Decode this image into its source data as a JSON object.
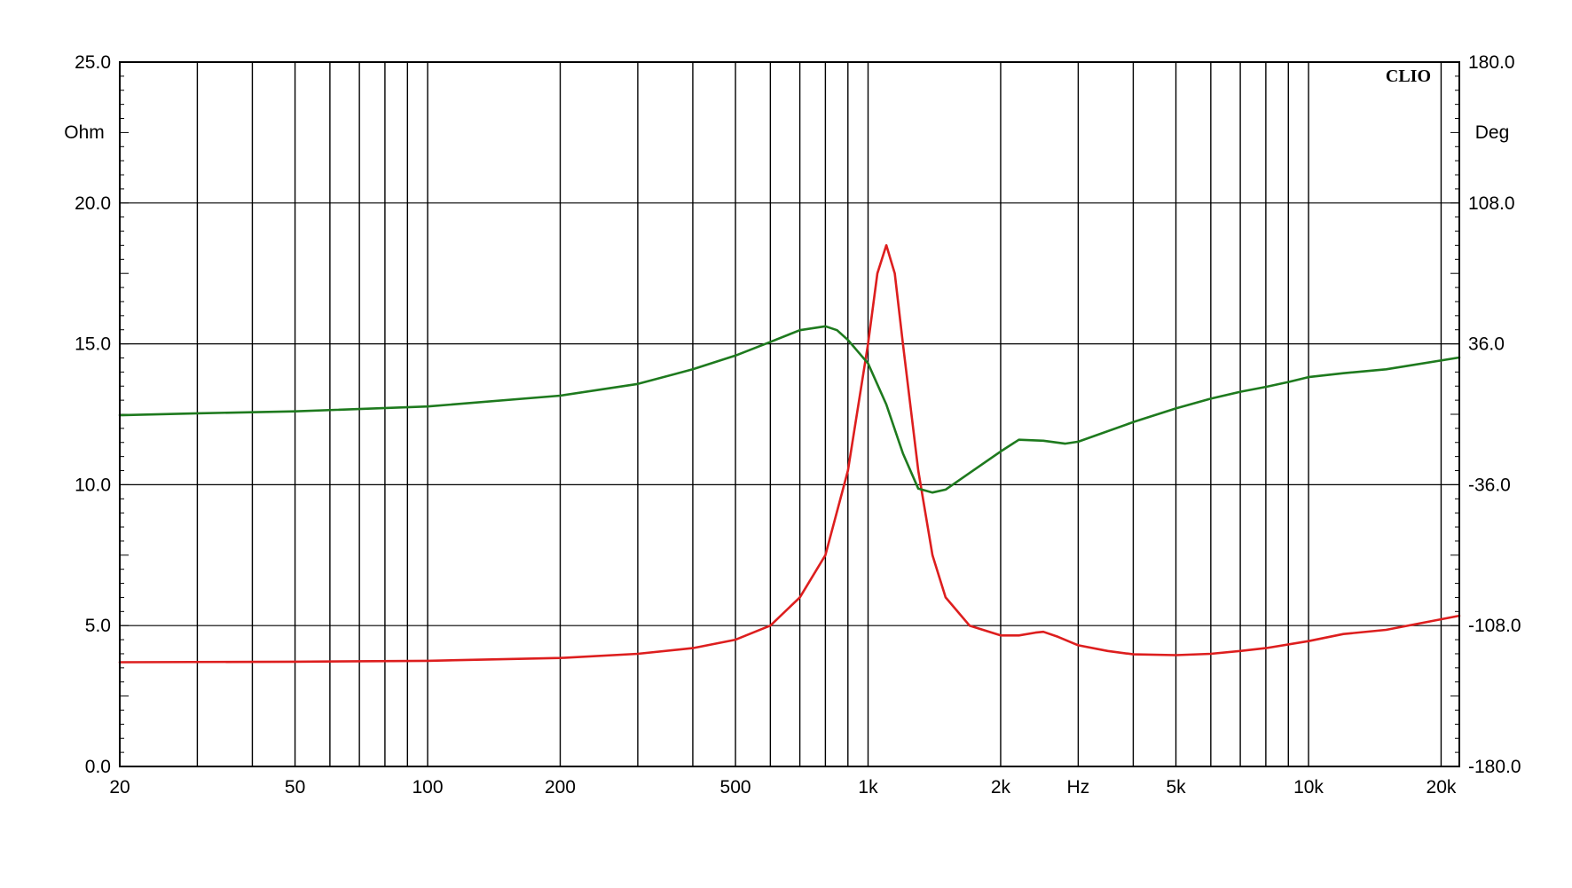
{
  "chart_data": {
    "type": "line",
    "brand": "CLIO",
    "x_scale": "log",
    "xlim": [
      20,
      22000
    ],
    "x_tick_labels": [
      "20",
      "50",
      "100",
      "200",
      "500",
      "1k",
      "2k",
      "Hz",
      "5k",
      "10k",
      "20k"
    ],
    "x_unit_label": "Hz",
    "y_left": {
      "unit": "Ohm",
      "range": [
        0,
        25
      ],
      "ticks": [
        "0.0",
        "5.0",
        "10.0",
        "15.0",
        "20.0",
        "25.0"
      ]
    },
    "y_right": {
      "unit": "Deg",
      "range": [
        -180,
        180
      ],
      "ticks": [
        "-180.0",
        "-108.0",
        "-36.0",
        "36.0",
        "108.0",
        "180.0"
      ]
    },
    "grid": true,
    "series": [
      {
        "axis": "left",
        "color": "#dd1e1e",
        "points": [
          [
            20,
            3.7
          ],
          [
            50,
            3.72
          ],
          [
            100,
            3.75
          ],
          [
            200,
            3.85
          ],
          [
            300,
            4.0
          ],
          [
            400,
            4.2
          ],
          [
            500,
            4.5
          ],
          [
            600,
            5.0
          ],
          [
            700,
            6.0
          ],
          [
            800,
            7.5
          ],
          [
            900,
            10.5
          ],
          [
            1000,
            15.0
          ],
          [
            1050,
            17.5
          ],
          [
            1100,
            18.5
          ],
          [
            1150,
            17.5
          ],
          [
            1200,
            15.0
          ],
          [
            1300,
            10.5
          ],
          [
            1400,
            7.5
          ],
          [
            1500,
            6.0
          ],
          [
            1700,
            5.0
          ],
          [
            2000,
            4.65
          ],
          [
            2200,
            4.65
          ],
          [
            2400,
            4.75
          ],
          [
            2500,
            4.78
          ],
          [
            2700,
            4.6
          ],
          [
            3000,
            4.3
          ],
          [
            3500,
            4.1
          ],
          [
            4000,
            3.98
          ],
          [
            5000,
            3.95
          ],
          [
            6000,
            4.0
          ],
          [
            7000,
            4.1
          ],
          [
            8000,
            4.2
          ],
          [
            10000,
            4.45
          ],
          [
            12000,
            4.7
          ],
          [
            15000,
            4.85
          ],
          [
            22000,
            5.35
          ]
        ]
      },
      {
        "axis": "right",
        "color": "#1e7a1e",
        "points": [
          [
            20,
            -0.5
          ],
          [
            30,
            0.5
          ],
          [
            50,
            1.5
          ],
          [
            100,
            4.0
          ],
          [
            200,
            9.5
          ],
          [
            300,
            15.5
          ],
          [
            400,
            23.0
          ],
          [
            500,
            30.0
          ],
          [
            600,
            37.0
          ],
          [
            700,
            43.0
          ],
          [
            800,
            45.0
          ],
          [
            850,
            43.0
          ],
          [
            900,
            38.0
          ],
          [
            1000,
            26.0
          ],
          [
            1100,
            5.0
          ],
          [
            1200,
            -20.0
          ],
          [
            1300,
            -38.0
          ],
          [
            1400,
            -40.0
          ],
          [
            1500,
            -38.5
          ],
          [
            1700,
            -30.0
          ],
          [
            2000,
            -19.0
          ],
          [
            2200,
            -13.0
          ],
          [
            2500,
            -13.5
          ],
          [
            2800,
            -15.0
          ],
          [
            3000,
            -14.0
          ],
          [
            4000,
            -4.0
          ],
          [
            5000,
            3.0
          ],
          [
            6000,
            8.0
          ],
          [
            7000,
            11.5
          ],
          [
            8000,
            14.0
          ],
          [
            9000,
            16.5
          ],
          [
            10000,
            19.0
          ],
          [
            12000,
            21.0
          ],
          [
            15000,
            23.0
          ],
          [
            22000,
            29.0
          ]
        ]
      }
    ]
  }
}
